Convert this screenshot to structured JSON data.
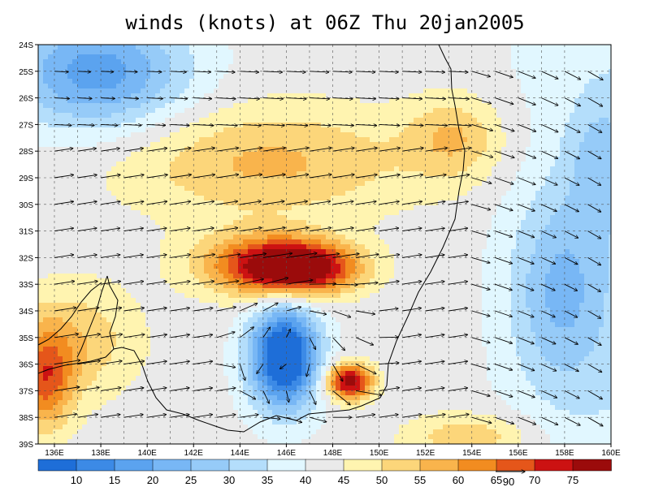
{
  "title": "winds (knots) at 06Z Thu 20jan2005",
  "map": {
    "lon_range": [
      135.3,
      160
    ],
    "lat_range": [
      -39,
      -24
    ],
    "x_ticks": [
      "136E",
      "138E",
      "140E",
      "142E",
      "144E",
      "146E",
      "148E",
      "150E",
      "152E",
      "154E",
      "156E",
      "158E",
      "160E"
    ],
    "y_ticks": [
      "24S",
      "25S",
      "26S",
      "27S",
      "28S",
      "29S",
      "30S",
      "31S",
      "32S",
      "33S",
      "34S",
      "35S",
      "36S",
      "37S",
      "38S",
      "39S"
    ],
    "gridlines": "dashed",
    "coastline_color": "#000000",
    "vector_color": "#000000",
    "reference_vector": {
      "label": "90",
      "units": "knots"
    }
  },
  "colorbar": {
    "labels": [
      "10",
      "15",
      "20",
      "25",
      "30",
      "35",
      "40",
      "45",
      "50",
      "55",
      "60",
      "65",
      "70",
      "75"
    ],
    "colors": [
      "#1e6ed8",
      "#3c8ae6",
      "#5ba3ef",
      "#78b7f5",
      "#96cbf8",
      "#b4defb",
      "#e1f7ff",
      "#eaeaea",
      "#fff4b0",
      "#fcd67a",
      "#f9b44c",
      "#f28c20",
      "#e5561a",
      "#cc1212",
      "#9b0b0b"
    ]
  }
}
